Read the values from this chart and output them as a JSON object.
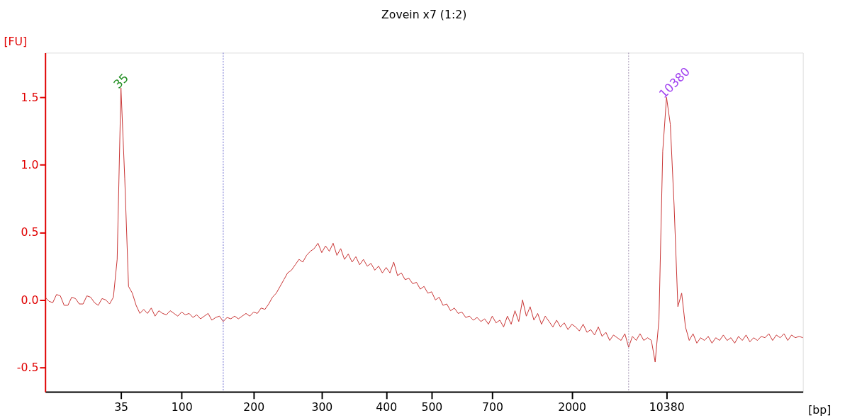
{
  "chart_data": {
    "type": "line",
    "title": "Zovein x7  (1:2)",
    "xlabel": "[bp]",
    "ylabel": "[FU]",
    "ylim": [
      -0.68,
      1.83
    ],
    "yticks": [
      {
        "value": -0.5,
        "label": "-0.5"
      },
      {
        "value": 0,
        "label": "0.0"
      },
      {
        "value": 0.5,
        "label": "0.5"
      },
      {
        "value": 1,
        "label": "1.0"
      },
      {
        "value": 1.5,
        "label": "1.5"
      }
    ],
    "grid": false,
    "marker": "none",
    "line_style": "solid",
    "categories": [
      null,
      null,
      null,
      null,
      null,
      null,
      null,
      null,
      null,
      null,
      null,
      null,
      null,
      null,
      null,
      null,
      null,
      null,
      null,
      null,
      "35",
      null,
      null,
      null,
      null,
      null,
      null,
      null,
      null,
      null,
      null,
      null,
      null,
      null,
      null,
      null,
      "100",
      null,
      null,
      null,
      null,
      null,
      null,
      null,
      null,
      null,
      null,
      null,
      null,
      null,
      null,
      null,
      null,
      null,
      null,
      "200",
      null,
      null,
      null,
      null,
      null,
      null,
      null,
      null,
      null,
      null,
      null,
      null,
      null,
      null,
      null,
      null,
      null,
      "300",
      null,
      null,
      null,
      null,
      null,
      null,
      null,
      null,
      null,
      null,
      null,
      null,
      null,
      null,
      null,
      null,
      "400",
      null,
      null,
      null,
      null,
      null,
      null,
      null,
      null,
      null,
      null,
      null,
      "500",
      null,
      null,
      null,
      null,
      null,
      null,
      null,
      null,
      null,
      null,
      null,
      null,
      null,
      null,
      null,
      "700",
      null,
      null,
      null,
      null,
      null,
      null,
      null,
      null,
      null,
      null,
      null,
      null,
      null,
      null,
      null,
      null,
      null,
      null,
      null,
      null,
      "2000",
      null,
      null,
      null,
      null,
      null,
      null,
      null,
      null,
      null,
      null,
      null,
      null,
      null,
      null,
      null,
      null,
      null,
      null,
      null,
      null,
      null,
      null,
      null,
      null,
      "10380",
      null,
      null,
      null,
      null,
      null,
      null,
      null,
      null,
      null,
      null,
      null,
      null,
      null,
      null,
      null,
      null,
      null,
      null,
      null,
      null,
      null,
      null,
      null,
      null,
      null,
      null,
      null,
      null,
      null,
      null,
      null,
      null,
      null,
      null,
      null,
      null
    ],
    "series": [
      {
        "color": "#c83232",
        "values": [
          0.02,
          -0.01,
          -0.02,
          0.04,
          0.03,
          -0.04,
          -0.04,
          0.02,
          0.01,
          -0.03,
          -0.03,
          0.03,
          0.02,
          -0.02,
          -0.04,
          0.01,
          0.0,
          -0.03,
          0.02,
          0.3,
          1.57,
          0.9,
          0.1,
          0.05,
          -0.04,
          -0.1,
          -0.07,
          -0.1,
          -0.06,
          -0.12,
          -0.08,
          -0.1,
          -0.11,
          -0.08,
          -0.1,
          -0.12,
          -0.09,
          -0.11,
          -0.1,
          -0.13,
          -0.11,
          -0.14,
          -0.12,
          -0.1,
          -0.15,
          -0.13,
          -0.12,
          -0.16,
          -0.13,
          -0.14,
          -0.12,
          -0.14,
          -0.12,
          -0.1,
          -0.12,
          -0.09,
          -0.1,
          -0.06,
          -0.07,
          -0.03,
          0.02,
          0.05,
          0.1,
          0.15,
          0.2,
          0.22,
          0.26,
          0.3,
          0.28,
          0.33,
          0.36,
          0.38,
          0.42,
          0.35,
          0.4,
          0.36,
          0.42,
          0.33,
          0.38,
          0.3,
          0.34,
          0.28,
          0.32,
          0.26,
          0.3,
          0.25,
          0.27,
          0.22,
          0.25,
          0.2,
          0.24,
          0.2,
          0.28,
          0.18,
          0.2,
          0.15,
          0.16,
          0.12,
          0.13,
          0.08,
          0.1,
          0.05,
          0.06,
          0.0,
          0.02,
          -0.04,
          -0.03,
          -0.08,
          -0.06,
          -0.1,
          -0.09,
          -0.13,
          -0.12,
          -0.15,
          -0.13,
          -0.16,
          -0.14,
          -0.18,
          -0.12,
          -0.17,
          -0.15,
          -0.2,
          -0.12,
          -0.18,
          -0.08,
          -0.16,
          0.0,
          -0.12,
          -0.05,
          -0.15,
          -0.1,
          -0.18,
          -0.12,
          -0.16,
          -0.2,
          -0.15,
          -0.2,
          -0.17,
          -0.22,
          -0.18,
          -0.2,
          -0.23,
          -0.18,
          -0.24,
          -0.22,
          -0.26,
          -0.2,
          -0.27,
          -0.24,
          -0.3,
          -0.26,
          -0.28,
          -0.3,
          -0.25,
          -0.35,
          -0.27,
          -0.3,
          -0.25,
          -0.3,
          -0.28,
          -0.3,
          -0.46,
          -0.15,
          1.1,
          1.5,
          1.3,
          0.7,
          -0.05,
          0.05,
          -0.2,
          -0.3,
          -0.25,
          -0.32,
          -0.28,
          -0.3,
          -0.27,
          -0.32,
          -0.28,
          -0.3,
          -0.26,
          -0.3,
          -0.28,
          -0.32,
          -0.27,
          -0.3,
          -0.26,
          -0.31,
          -0.28,
          -0.3,
          -0.27,
          -0.28,
          -0.25,
          -0.3,
          -0.26,
          -0.28,
          -0.25,
          -0.3,
          -0.26,
          -0.28,
          -0.27,
          -0.28
        ]
      }
    ],
    "annotations": [
      {
        "text": "35",
        "x": "35",
        "y": 1.57
      },
      {
        "text": "10380",
        "x": "10380",
        "y": 1.5
      }
    ]
  }
}
